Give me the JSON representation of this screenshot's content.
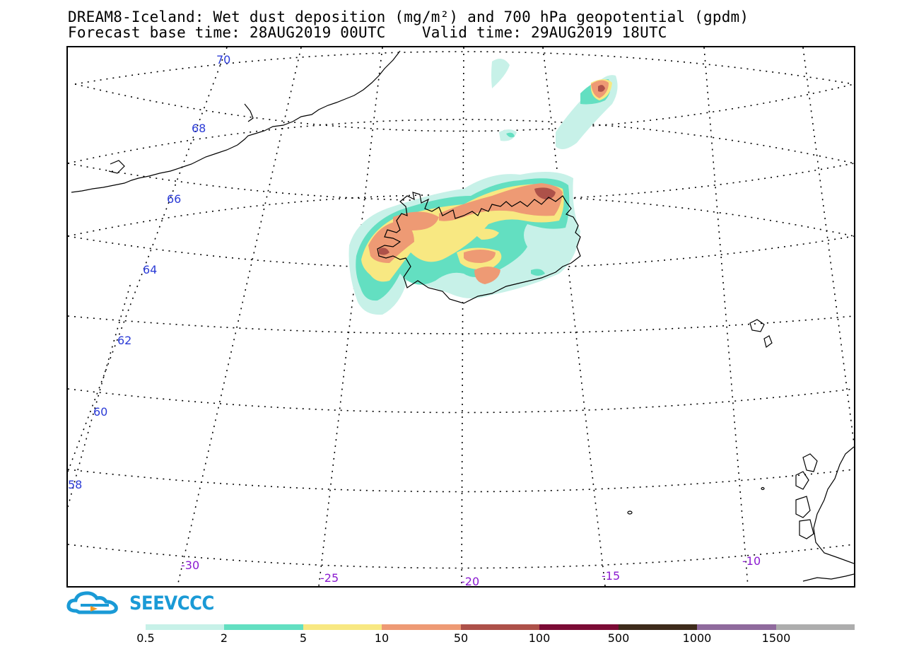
{
  "title": {
    "line1": "DREAM8-Iceland: Wet dust deposition (mg/m²) and 700 hPa geopotential (gpdm)",
    "line2": "Forecast base time: 28AUG2019 00UTC    Valid time: 29AUG2019 18UTC"
  },
  "map": {
    "latitude_labels": [
      "70",
      "68",
      "66",
      "64",
      "62",
      "60",
      "58"
    ],
    "longitude_labels": [
      "-30",
      "-25",
      "-20",
      "-15",
      "-10"
    ],
    "graticule_style": "dotted",
    "coastline_color": "#000000"
  },
  "logo": {
    "text": "SEEVCCC",
    "color": "#1a9ad6",
    "icon": "cloud-icon"
  },
  "legend": {
    "thresholds": [
      "0.5",
      "2",
      "5",
      "10",
      "50",
      "100",
      "500",
      "1000",
      "1500"
    ],
    "colors": [
      "#c7f1e8",
      "#63dfc1",
      "#f8e882",
      "#ee9a74",
      "#ad5149",
      "#7b0b35",
      "#3e2b1b",
      "#8f6a9d",
      "#adadad"
    ]
  }
}
